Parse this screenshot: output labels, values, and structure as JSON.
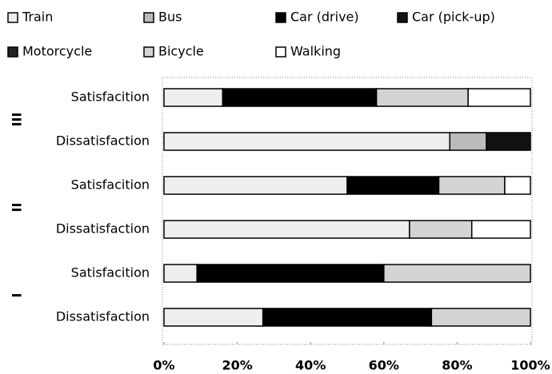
{
  "chart_data": {
    "type": "stacked-bar-horizontal",
    "categories": [
      "Satisfacition",
      "Dissatisfaction",
      "Satisfacition",
      "Dissatisfaction",
      "Satisfacition",
      "Dissatisfaction"
    ],
    "groups": [
      "III",
      "II",
      "I"
    ],
    "series": [
      {
        "name": "Train",
        "color": "#eeeeee",
        "values": [
          16,
          78,
          50,
          67,
          9,
          27
        ]
      },
      {
        "name": "Bus",
        "color": "#bbbbbb",
        "values": [
          0,
          10,
          0,
          0,
          0,
          0
        ]
      },
      {
        "name": "Car (drive)",
        "color": "#000000",
        "values": [
          42,
          0,
          25,
          0,
          51,
          46
        ]
      },
      {
        "name": "Car (pick-up)",
        "color": "#111111",
        "values": [
          0,
          12,
          0,
          0,
          0,
          0
        ]
      },
      {
        "name": "Motorcycle",
        "color": "#222222",
        "values": [
          0,
          0,
          0,
          0,
          0,
          0
        ]
      },
      {
        "name": "Bicycle",
        "color": "#d4d4d4",
        "values": [
          25,
          0,
          18,
          17,
          40,
          27
        ]
      },
      {
        "name": "Walking",
        "color": "#ffffff",
        "values": [
          17,
          0,
          7,
          16,
          0,
          0
        ]
      }
    ],
    "xlim": [
      0,
      100
    ],
    "xticks": [
      {
        "value": 0,
        "label": "0%"
      },
      {
        "value": 20,
        "label": "20%"
      },
      {
        "value": 40,
        "label": "40%"
      },
      {
        "value": 60,
        "label": "60%"
      },
      {
        "value": 80,
        "label": "80%"
      },
      {
        "value": 100,
        "label": "100%"
      }
    ]
  }
}
